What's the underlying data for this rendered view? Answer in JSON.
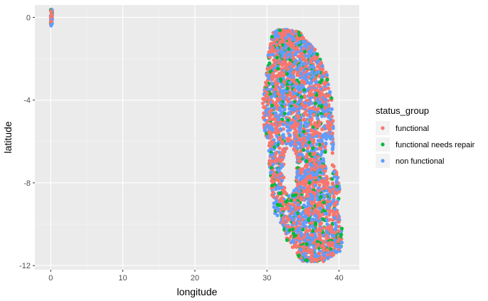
{
  "chart_data": {
    "type": "scatter",
    "xlabel": "longitude",
    "ylabel": "latitude",
    "xlim": [
      -2.2,
      42.8
    ],
    "ylim": [
      -12.2,
      0.6
    ],
    "x_ticks": [
      0,
      10,
      20,
      30,
      40
    ],
    "y_ticks": [
      0,
      -4,
      -8,
      -12
    ],
    "grid": true,
    "legend": {
      "title": "status_group",
      "placement": "right"
    },
    "series": [
      {
        "name": "functional",
        "color": "#F8766D"
      },
      {
        "name": "functional needs repair",
        "color": "#00BA38"
      },
      {
        "name": "non functional",
        "color": "#619CFF"
      }
    ],
    "point_regions": [
      {
        "label": "origin cluster",
        "lon": [
          0,
          0.2
        ],
        "lat": [
          -0.4,
          0.4
        ]
      },
      {
        "label": "main cluster",
        "lon": [
          29.3,
          40.5
        ],
        "lat": [
          -11.8,
          -0.6
        ]
      }
    ]
  }
}
